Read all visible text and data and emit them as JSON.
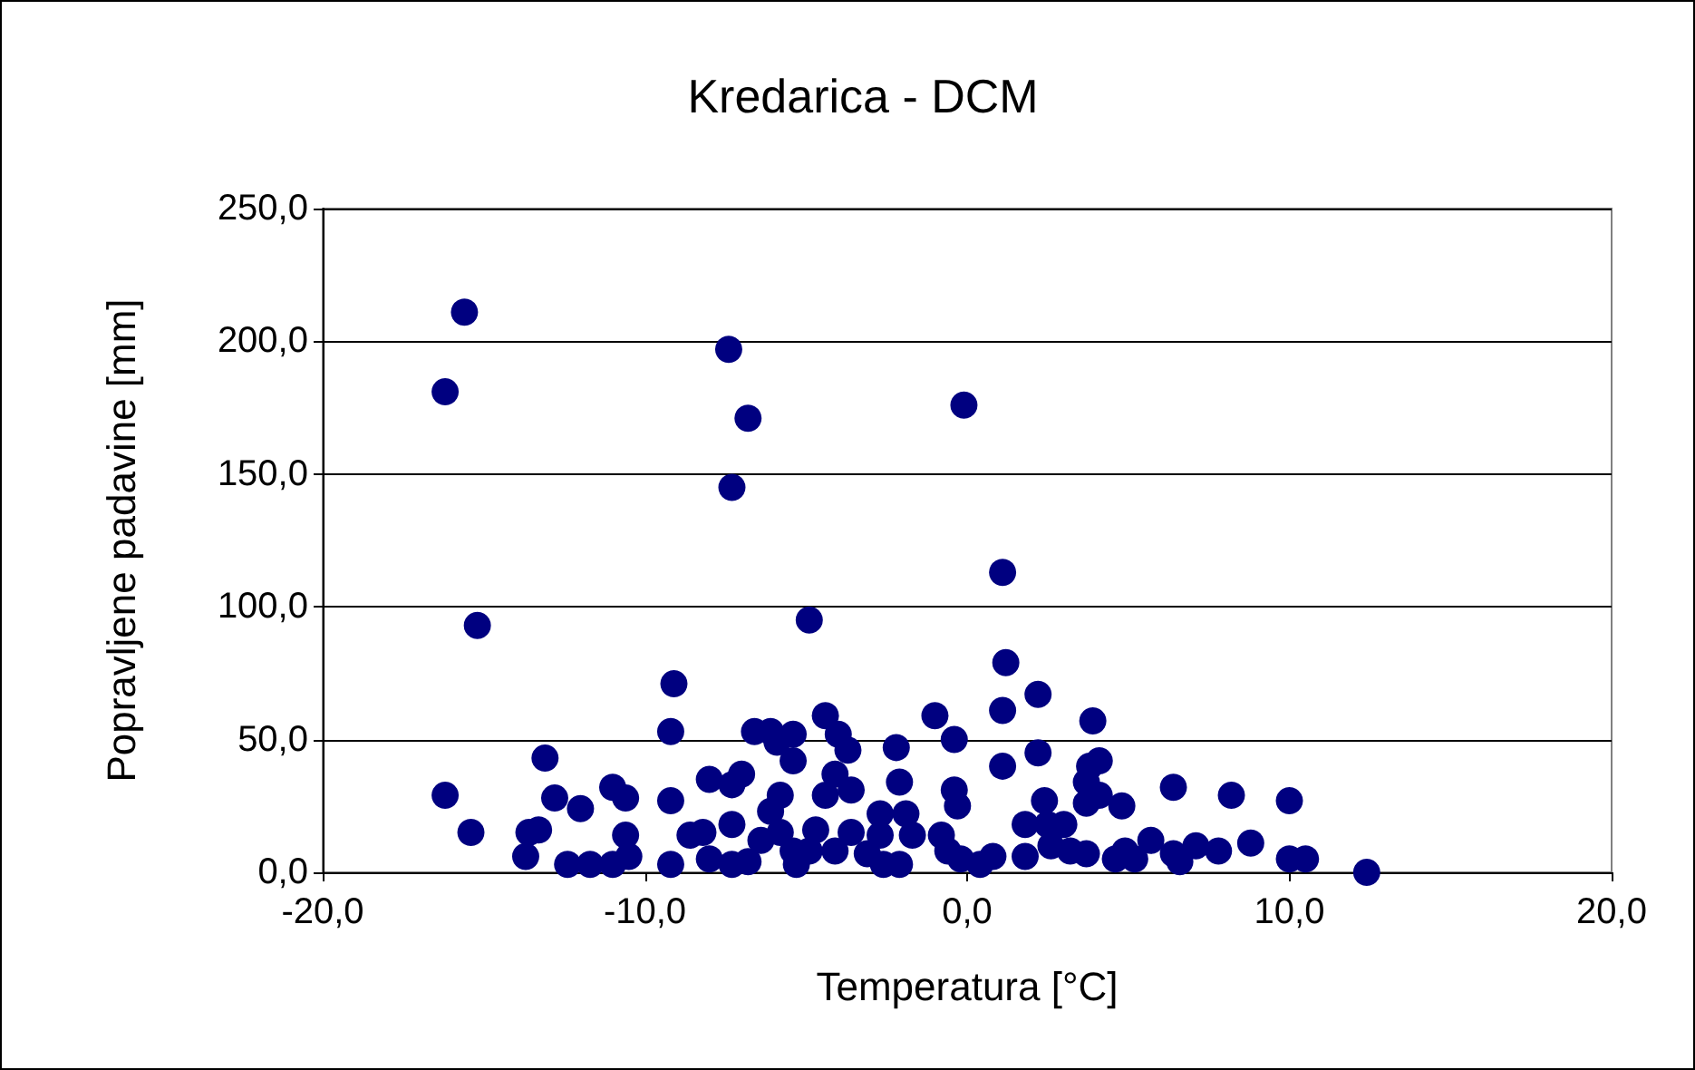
{
  "chart_data": {
    "type": "scatter",
    "title": "Kredarica - DCM",
    "xlabel": "Temperatura [°C]",
    "ylabel": "Popravljene padavine [mm]",
    "xlim": [
      -20,
      20
    ],
    "xticks": [
      {
        "value": -20,
        "label": "-20,0"
      },
      {
        "value": -10,
        "label": "-10,0"
      },
      {
        "value": 0,
        "label": "0,0"
      },
      {
        "value": 10,
        "label": "10,0"
      },
      {
        "value": 20,
        "label": "20,0"
      }
    ],
    "ylim": [
      0,
      250
    ],
    "yticks": [
      {
        "value": 0,
        "label": "0,0"
      },
      {
        "value": 50,
        "label": "50,0"
      },
      {
        "value": 100,
        "label": "100,0"
      },
      {
        "value": 150,
        "label": "150,0"
      },
      {
        "value": 200,
        "label": "200,0"
      },
      {
        "value": 250,
        "label": "250,0"
      }
    ],
    "grid": "y",
    "marker": "circle",
    "series": [
      {
        "color": "#000080",
        "x": [
          -15.6,
          -16.2,
          -7.4,
          -6.8,
          -7.3,
          -0.1,
          1.1,
          -15.2,
          -4.9,
          -16.2,
          -15.4,
          -13.1,
          -9.1,
          -9.2,
          -12.8,
          -12,
          -13.7,
          -13.6,
          -13.3,
          -12.4,
          -11.7,
          -11.0,
          -10.6,
          -11.0,
          -10.6,
          -10.5,
          -9.2,
          -9.2,
          -8.6,
          -8.2,
          -8.0,
          -8.0,
          -7.3,
          -7.0,
          -6.6,
          -7.3,
          -7.3,
          -6.8,
          -6.4,
          -6.1,
          -5.9,
          -5.4,
          -5.4,
          -5.8,
          -6.1,
          -5.8,
          -5.4,
          -5.3,
          -4.4,
          -4.1,
          -4.0,
          -3.7,
          -3.6,
          -4.4,
          -4.7,
          -4.9,
          -4.1,
          -3.6,
          -3.1,
          -2.7,
          -2.7,
          -2.6,
          -2.2,
          -2.1,
          -1.9,
          -1.7,
          -2.1,
          -1.0,
          -0.4,
          -0.4,
          -0.3,
          -0.8,
          -0.6,
          -0.2,
          0.4,
          0.8,
          1.1,
          1.2,
          1.1,
          1.8,
          1.8,
          2.2,
          2.2,
          2.4,
          2.5,
          3.0,
          3.2,
          3.7,
          3.9,
          4.1,
          3.8,
          3.7,
          4.1,
          4.8,
          4.9,
          5.2,
          5.7,
          6.4,
          6.4,
          6.6,
          7.1,
          7.8,
          8.2,
          8.8,
          10.0,
          10.0,
          10.5,
          12.4,
          4.6,
          3.7,
          2.6
        ],
        "values": [
          211,
          181,
          197,
          171,
          145,
          176,
          113,
          93,
          95,
          29,
          15,
          43,
          71,
          53,
          28,
          24,
          6,
          15,
          16,
          3,
          3,
          3,
          28,
          32,
          14,
          6,
          27,
          3,
          14,
          15,
          35,
          5,
          33,
          37,
          53,
          18,
          3,
          4,
          12,
          53,
          49,
          52,
          42,
          29,
          23,
          15,
          8,
          3,
          59,
          37,
          52,
          46,
          31,
          29,
          16,
          8,
          8,
          15,
          7,
          22,
          14,
          3,
          47,
          34,
          22,
          14,
          3,
          59,
          50,
          31,
          25,
          14,
          8,
          5,
          3,
          6,
          61,
          79,
          40,
          18,
          6,
          67,
          45,
          27,
          18,
          18,
          8,
          34,
          57,
          42,
          40,
          26,
          29,
          25,
          8,
          5,
          12,
          7,
          32,
          4,
          10,
          8,
          29,
          11,
          27,
          5,
          5,
          0,
          5,
          7,
          10
        ]
      }
    ]
  }
}
